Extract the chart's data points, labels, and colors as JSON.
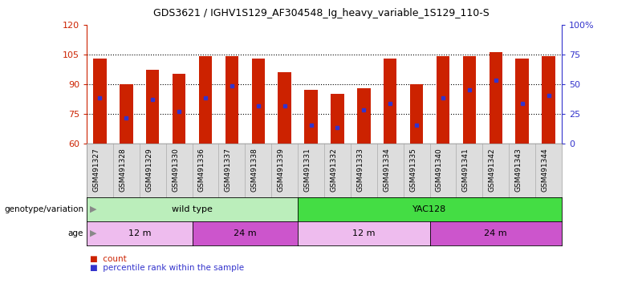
{
  "title": "GDS3621 / IGHV1S129_AF304548_Ig_heavy_variable_1S129_110-S",
  "samples": [
    "GSM491327",
    "GSM491328",
    "GSM491329",
    "GSM491330",
    "GSM491336",
    "GSM491337",
    "GSM491338",
    "GSM491339",
    "GSM491331",
    "GSM491332",
    "GSM491333",
    "GSM491334",
    "GSM491335",
    "GSM491340",
    "GSM491341",
    "GSM491342",
    "GSM491343",
    "GSM491344"
  ],
  "bar_tops": [
    103,
    90,
    97,
    95,
    104,
    104,
    103,
    96,
    87,
    85,
    88,
    103,
    90,
    104,
    104,
    106,
    103,
    104
  ],
  "blue_dot_y": [
    83,
    73,
    82,
    76,
    83,
    89,
    79,
    79,
    69,
    68,
    77,
    80,
    69,
    83,
    87,
    92,
    80,
    84
  ],
  "bar_baseline": 60,
  "ylim_left": [
    60,
    120
  ],
  "yticks_left": [
    60,
    75,
    90,
    105,
    120
  ],
  "ytick_labels_left": [
    "60",
    "75",
    "90",
    "105",
    "120"
  ],
  "ytick_dotted": [
    75,
    90,
    105
  ],
  "yticks_right_vals": [
    60,
    75,
    90,
    105,
    120
  ],
  "ytick_labels_right": [
    "0",
    "25",
    "50",
    "75",
    "100%"
  ],
  "bar_color": "#cc2200",
  "dot_color": "#3333cc",
  "bg_color": "#ffffff",
  "plot_bg": "#ffffff",
  "xtick_bg": "#dddddd",
  "genotype_groups": [
    {
      "label": "wild type",
      "start": 0,
      "end": 8,
      "color": "#bbeebb"
    },
    {
      "label": "YAC128",
      "start": 8,
      "end": 18,
      "color": "#44dd44"
    }
  ],
  "age_groups": [
    {
      "label": "12 m",
      "start": 0,
      "end": 4,
      "color": "#eebcee"
    },
    {
      "label": "24 m",
      "start": 4,
      "end": 8,
      "color": "#cc55cc"
    },
    {
      "label": "12 m",
      "start": 8,
      "end": 13,
      "color": "#eebcee"
    },
    {
      "label": "24 m",
      "start": 13,
      "end": 18,
      "color": "#cc55cc"
    }
  ],
  "legend_items": [
    {
      "label": "count",
      "color": "#cc2200"
    },
    {
      "label": "percentile rank within the sample",
      "color": "#3333cc"
    }
  ],
  "genotype_label": "genotype/variation",
  "age_label": "age",
  "bar_width": 0.5,
  "left_label_color": "#cc2200",
  "right_label_color": "#3333cc"
}
